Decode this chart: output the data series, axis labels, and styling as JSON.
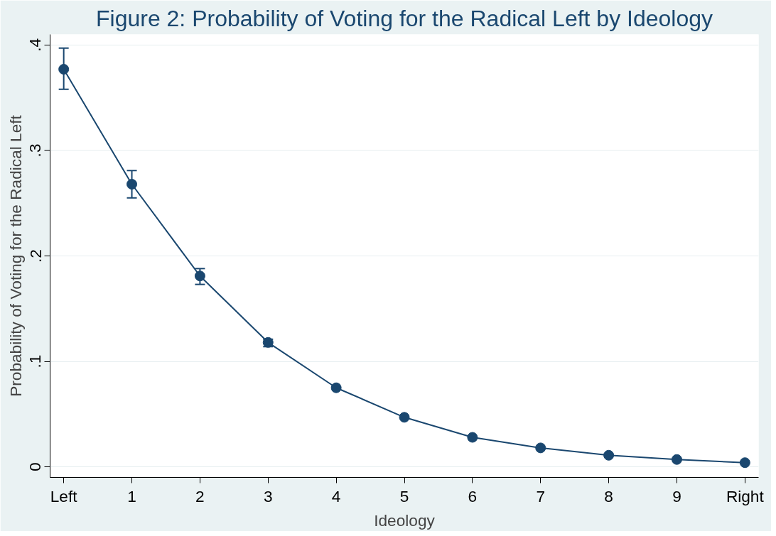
{
  "chart_data": {
    "type": "line",
    "title": "Figure 2: Probability of Voting for the Radical Left by Ideology",
    "xlabel": "Ideology",
    "ylabel": "Probability of Voting for the Radical Left",
    "x": [
      0,
      1,
      2,
      3,
      4,
      5,
      6,
      7,
      8,
      9,
      10
    ],
    "series": [
      {
        "color": "#1a476f",
        "values": [
          0.377,
          0.268,
          0.181,
          0.118,
          0.075,
          0.047,
          0.028,
          0.018,
          0.011,
          0.007,
          0.004
        ],
        "errors": [
          [
            0.358,
            0.397
          ],
          [
            0.255,
            0.281
          ],
          [
            0.173,
            0.188
          ],
          [
            0.114,
            0.121
          ],
          null,
          null,
          null,
          null,
          null,
          null,
          null
        ]
      }
    ],
    "xlim": [
      -0.2,
      10.2
    ],
    "ylim": [
      -0.01,
      0.41
    ],
    "xticks": [
      {
        "value": 0,
        "label": "Left"
      },
      1,
      2,
      3,
      4,
      5,
      6,
      7,
      8,
      9,
      {
        "value": 10,
        "label": "Right"
      }
    ],
    "yticks": [
      {
        "value": 0,
        "label": "0"
      },
      {
        "value": 0.1,
        "label": ".1"
      },
      {
        "value": 0.2,
        "label": ".2"
      },
      {
        "value": 0.3,
        "label": ".3"
      },
      {
        "value": 0.4,
        "label": ".4"
      }
    ],
    "grid": "y",
    "marker": "circle",
    "line_style": "solid"
  }
}
